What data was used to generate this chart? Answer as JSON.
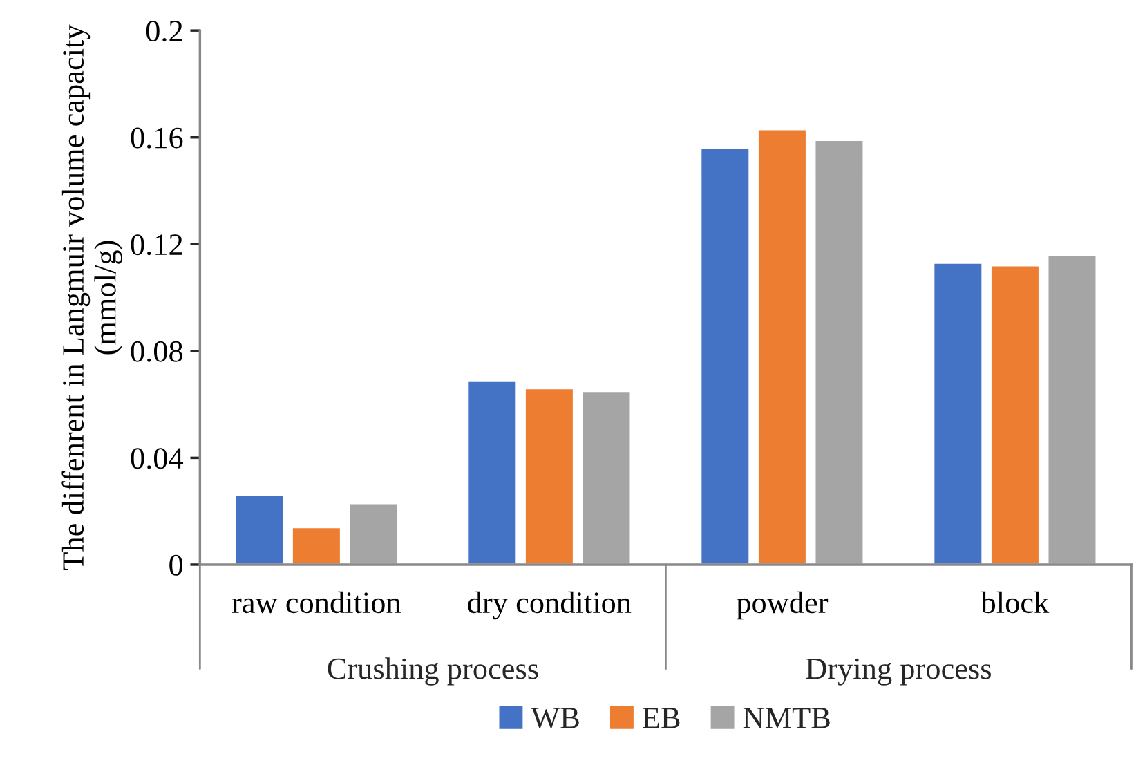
{
  "chart_data": {
    "type": "bar",
    "ylabel": "The diffenrent in Langmuir volume capacity (mmol/g)",
    "categories": [
      "raw condition",
      "dry condition",
      "powder",
      "block"
    ],
    "series": [
      {
        "name": "WB",
        "color": "#4472c4",
        "values": [
          0.026,
          0.069,
          0.156,
          0.113
        ]
      },
      {
        "name": "EB",
        "color": "#ed7d31",
        "values": [
          0.014,
          0.066,
          0.163,
          0.112
        ]
      },
      {
        "name": "NMTB",
        "color": "#a5a5a5",
        "values": [
          0.023,
          0.065,
          0.159,
          0.116
        ]
      }
    ],
    "annotations": [
      "Crushing process",
      "Drying process"
    ],
    "ylim": [
      0,
      0.2
    ],
    "yticks": [
      0,
      0.04,
      0.08,
      0.12,
      0.16,
      0.2
    ],
    "grid": false,
    "legend": "bottom"
  }
}
